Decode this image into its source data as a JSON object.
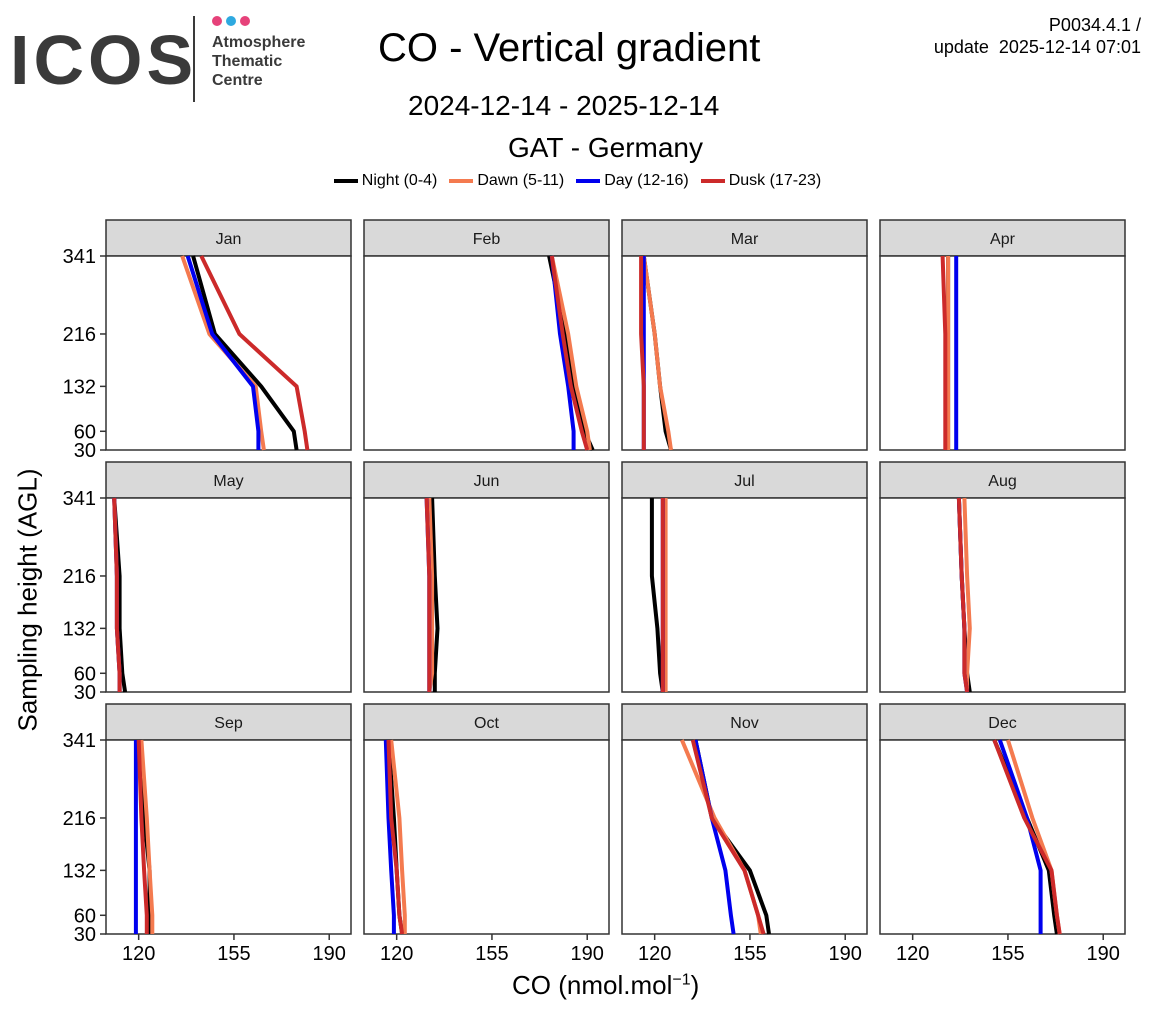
{
  "logo": {
    "name": "ICOS",
    "line1": "Atmosphere",
    "line2": "Thematic",
    "line3": "Centre"
  },
  "header": {
    "title": "CO - Vertical gradient",
    "date_range": "2024-12-14 - 2025-12-14",
    "station": "GAT - Germany",
    "product_id": "P0034.4.1 /",
    "update": "update  2025-12-14 07:01"
  },
  "colors": {
    "night": "#000000",
    "dawn": "#f47a4f",
    "day": "#0000ee",
    "dusk": "#cc2a2a",
    "strip": "#d9d9d9",
    "panel_border": "#333333"
  },
  "chart_data": {
    "type": "line",
    "title": "CO - Vertical gradient",
    "xlabel": "CO (nmol.mol",
    "xlabel_exp": "−1",
    "xlabel_close": ")",
    "ylabel": "Sampling height (AGL)",
    "xlim": [
      108,
      198
    ],
    "ylim": [
      30,
      341
    ],
    "x_ticks": [
      120,
      155,
      190
    ],
    "y_ticks": [
      30,
      60,
      132,
      216,
      341
    ],
    "heights": [
      30,
      60,
      132,
      216,
      341
    ],
    "series_meta": [
      {
        "key": "night",
        "name": "Night (0-4)"
      },
      {
        "key": "dawn",
        "name": "Dawn (5-11)"
      },
      {
        "key": "day",
        "name": "Day (12-16)"
      },
      {
        "key": "dusk",
        "name": "Dusk (17-23)"
      }
    ],
    "panels": [
      {
        "month": "Jan",
        "series": {
          "night": [
            178,
            177,
            165,
            148,
            140
          ],
          "dawn": [
            166,
            165,
            163,
            146,
            136
          ],
          "day": [
            164,
            164,
            162,
            147,
            138
          ],
          "dusk": [
            182,
            181,
            178,
            157,
            143
          ]
        }
      },
      {
        "month": "Feb",
        "series": {
          "night": [
            192,
            189,
            185,
            182,
            176
          ],
          "dawn": [
            191,
            190,
            186,
            183,
            177
          ],
          "day": [
            185,
            185,
            183,
            180,
            177
          ],
          "dusk": [
            190,
            188,
            184,
            181,
            177
          ]
        }
      },
      {
        "month": "Mar",
        "series": {
          "night": [
            126,
            124,
            122,
            120,
            116
          ],
          "dawn": [
            126,
            125,
            122,
            120,
            116
          ],
          "day": [
            116,
            116,
            116,
            116,
            116
          ],
          "dusk": [
            116,
            116,
            116,
            115,
            115
          ]
        }
      },
      {
        "month": "Apr",
        "series": {
          "night": [
            133,
            133,
            133,
            133,
            133
          ],
          "dawn": [
            133,
            133,
            133,
            133,
            133
          ],
          "day": [
            136,
            136,
            136,
            136,
            136
          ],
          "dusk": [
            132,
            132,
            132,
            132,
            131
          ]
        }
      },
      {
        "month": "May",
        "series": {
          "night": [
            115,
            114,
            113,
            113,
            111
          ],
          "dawn": [
            113,
            113,
            112,
            112,
            111
          ],
          "day": [
            113,
            113,
            112,
            112,
            111
          ],
          "dusk": [
            113,
            113,
            112,
            112,
            111
          ]
        }
      },
      {
        "month": "Jun",
        "series": {
          "night": [
            134,
            134,
            135,
            134,
            133
          ],
          "dawn": [
            132,
            133,
            133,
            133,
            132
          ],
          "day": [
            132,
            132,
            132,
            132,
            131
          ],
          "dusk": [
            132,
            132,
            132,
            132,
            131
          ]
        }
      },
      {
        "month": "Jul",
        "series": {
          "night": [
            123,
            122,
            121,
            119,
            119
          ],
          "dawn": [
            124,
            124,
            124,
            124,
            124
          ],
          "day": [
            123,
            123,
            123,
            123,
            123
          ],
          "dusk": [
            123,
            123,
            123,
            123,
            123
          ]
        }
      },
      {
        "month": "Aug",
        "series": {
          "night": [
            141,
            140,
            139,
            138,
            137
          ],
          "dawn": [
            140,
            140,
            141,
            140,
            139
          ],
          "day": [
            140,
            139,
            139,
            138,
            137
          ],
          "dusk": [
            140,
            139,
            139,
            138,
            137
          ]
        }
      },
      {
        "month": "Sep",
        "series": {
          "night": [
            124,
            124,
            124,
            122,
            120
          ],
          "dawn": [
            125,
            125,
            124,
            123,
            121
          ],
          "day": [
            119,
            119,
            119,
            119,
            119
          ],
          "dusk": [
            123,
            123,
            122,
            121,
            120
          ]
        }
      },
      {
        "month": "Oct",
        "series": {
          "night": [
            122,
            121,
            120,
            119,
            117
          ],
          "dawn": [
            123,
            123,
            122,
            121,
            118
          ],
          "day": [
            119,
            119,
            118,
            117,
            116
          ],
          "dusk": [
            122,
            121,
            120,
            118,
            117
          ]
        }
      },
      {
        "month": "Nov",
        "series": {
          "night": [
            162,
            161,
            155,
            141,
            135
          ],
          "dawn": [
            159,
            158,
            153,
            142,
            130
          ],
          "day": [
            149,
            148,
            146,
            141,
            135
          ],
          "dusk": [
            160,
            158,
            153,
            141,
            134
          ]
        }
      },
      {
        "month": "Dec",
        "series": {
          "night": [
            173,
            172,
            170,
            162,
            150
          ],
          "dawn": [
            174,
            173,
            171,
            164,
            155
          ],
          "day": [
            167,
            167,
            167,
            162,
            152
          ],
          "dusk": [
            174,
            173,
            171,
            161,
            150
          ]
        }
      }
    ]
  }
}
